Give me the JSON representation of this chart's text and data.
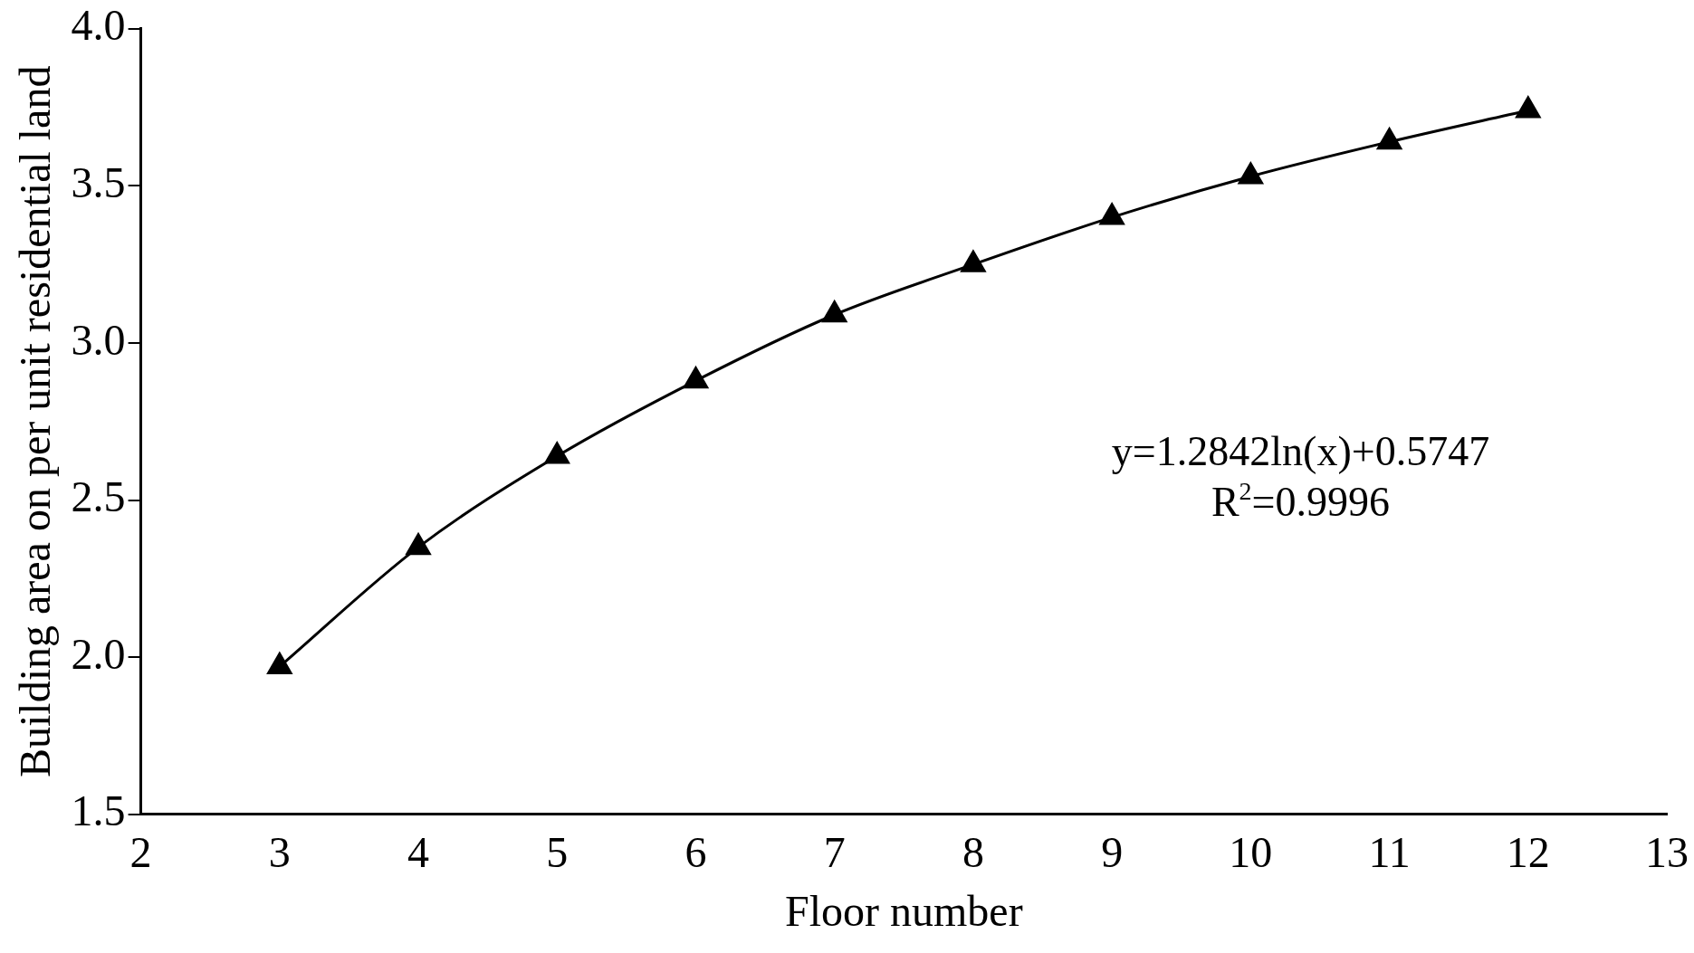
{
  "chart_data": {
    "type": "line",
    "xlabel": "Floor number",
    "ylabel": "Building area on per unit residential land",
    "x": [
      3,
      4,
      5,
      6,
      7,
      8,
      9,
      10,
      11,
      12
    ],
    "series": [
      {
        "color": "#000000",
        "values": [
          1.97,
          2.35,
          2.64,
          2.88,
          3.09,
          3.25,
          3.4,
          3.53,
          3.64,
          3.74
        ]
      }
    ],
    "xlim": [
      2,
      13
    ],
    "xticks": [
      2,
      3,
      4,
      5,
      6,
      7,
      8,
      9,
      10,
      11,
      12,
      13
    ],
    "ylim": [
      1.5,
      4.0
    ],
    "yticks": [
      {
        "value": 1.5,
        "label": "1.5"
      },
      {
        "value": 2.0,
        "label": "2.0"
      },
      {
        "value": 2.5,
        "label": "2.5"
      },
      {
        "value": 3.0,
        "label": "3.0"
      },
      {
        "value": 3.5,
        "label": "3.5"
      },
      {
        "value": 4.0,
        "label": "4.0"
      }
    ],
    "annotations": [
      "y=1.2842ln(x)+0.5747",
      "R$^{2}$=0.9996"
    ],
    "grid": false,
    "legend": false,
    "marker": "triangle",
    "line_style": "solid"
  }
}
